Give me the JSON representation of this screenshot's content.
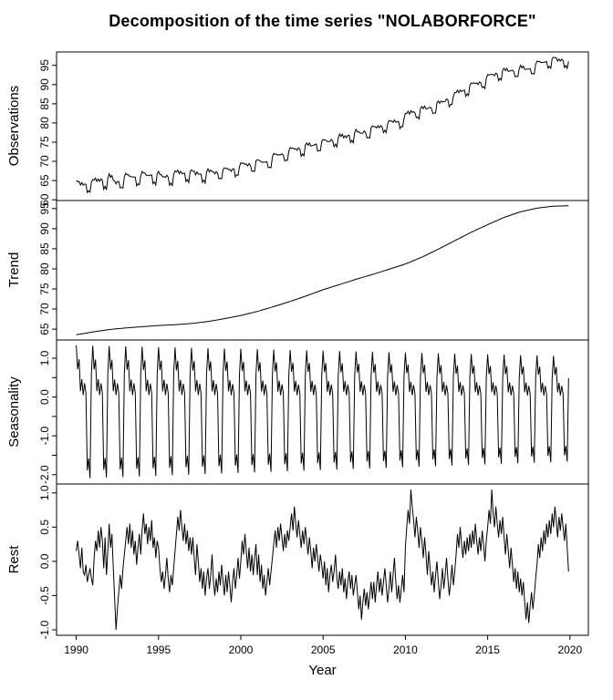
{
  "chart_data": {
    "type": "line",
    "title": "Decomposition of the time series \"NOLABORFORCE\"",
    "xlabel": "Year",
    "line_color": "#000000",
    "background_color": "#ffffff",
    "x_start": 1990,
    "frequency": 12,
    "n_points": 360,
    "xlim": [
      1988.8,
      2021.12
    ],
    "xticks": [
      1990,
      1995,
      2000,
      2005,
      2010,
      2015,
      2020
    ],
    "grid": false,
    "legend": "none",
    "panels": [
      {
        "name": "Observations",
        "source": "sum",
        "ylim": [
          59.8,
          98.5
        ],
        "yticks": [
          60,
          65,
          70,
          75,
          80,
          85,
          90,
          95
        ],
        "ytick_labels": [
          "60",
          "65",
          "70",
          "75",
          "80",
          "85",
          "90",
          "95"
        ]
      },
      {
        "name": "Trend",
        "source": "trend",
        "ylim": [
          62.3,
          97.0
        ],
        "yticks": [
          65,
          70,
          75,
          80,
          85,
          90,
          95
        ],
        "ytick_labels": [
          "65",
          "70",
          "75",
          "80",
          "85",
          "90",
          "95"
        ]
      },
      {
        "name": "Seasonality",
        "source": "seasonality",
        "ylim": [
          -2.24,
          1.47
        ],
        "yticks": [
          -2.0,
          -1.5,
          -1.0,
          -0.5,
          0.0,
          0.5,
          1.0
        ],
        "ytick_labels": [
          "-2.0",
          "",
          "-1.0",
          "",
          "0.0",
          "",
          "1.0"
        ]
      },
      {
        "name": "Rest",
        "source": "rest",
        "ylim": [
          -1.08,
          1.13
        ],
        "yticks": [
          -1.0,
          -0.5,
          0.0,
          0.5,
          1.0
        ],
        "ytick_labels": [
          "-1.0",
          "-0.5",
          "0.0",
          "0.5",
          "1.0"
        ]
      }
    ],
    "trend": {
      "anchor_years": [
        1990,
        1991,
        1992,
        1993,
        1994,
        1995,
        1996,
        1997,
        1998,
        1999,
        2000,
        2001,
        2002,
        2003,
        2004,
        2005,
        2006,
        2007,
        2008,
        2009,
        2010,
        2011,
        2012,
        2013,
        2014,
        2015,
        2016,
        2017,
        2018,
        2019,
        2020
      ],
      "anchor_values": [
        63.6,
        64.3,
        64.9,
        65.3,
        65.6,
        65.9,
        66.1,
        66.4,
        66.9,
        67.6,
        68.4,
        69.4,
        70.6,
        71.9,
        73.3,
        74.8,
        76.1,
        77.4,
        78.6,
        79.9,
        81.2,
        82.9,
        84.9,
        87.0,
        89.1,
        91.0,
        92.8,
        94.2,
        95.1,
        95.6,
        95.7
      ]
    },
    "seasonality": {
      "monthly_pattern": [
        1.3,
        0.7,
        0.95,
        0.15,
        0.45,
        0.05,
        0.35,
        0.1,
        -1.85,
        -1.55,
        -2.05,
        0.6
      ],
      "amplitude_start": 1.025,
      "amplitude_end": 0.81
    },
    "rest": {
      "values": [
        0.15,
        0.3,
        0.1,
        -0.1,
        0.2,
        -0.15,
        -0.2,
        -0.05,
        -0.3,
        -0.2,
        -0.1,
        -0.25,
        -0.35,
        0.05,
        0.3,
        0.15,
        0.45,
        0.2,
        0.5,
        0.3,
        -0.1,
        0.35,
        -0.2,
        0.15,
        0.55,
        0.2,
        0.4,
        -0.1,
        -0.55,
        -1.0,
        -0.7,
        -0.45,
        -0.2,
        -0.4,
        -0.1,
        0.1,
        0.3,
        0.5,
        0.25,
        0.55,
        0.2,
        0.45,
        0.1,
        0.3,
        -0.05,
        0.2,
        0.4,
        0.1,
        0.45,
        0.7,
        0.4,
        0.55,
        0.25,
        0.5,
        0.3,
        0.6,
        0.2,
        0.35,
        0.05,
        0.3,
        0.2,
        -0.1,
        -0.3,
        -0.15,
        -0.4,
        -0.2,
        0.05,
        -0.25,
        -0.45,
        -0.2,
        -0.35,
        -0.1,
        0.15,
        0.4,
        0.65,
        0.45,
        0.75,
        0.5,
        0.3,
        0.55,
        0.25,
        0.45,
        0.15,
        0.35,
        0.1,
        0.35,
        0.05,
        -0.2,
        0.25,
        0.0,
        -0.3,
        -0.1,
        -0.4,
        -0.15,
        -0.5,
        -0.25,
        -0.1,
        -0.4,
        -0.2,
        0.1,
        -0.3,
        -0.5,
        -0.25,
        -0.45,
        -0.15,
        -0.35,
        -0.05,
        -0.3,
        -0.5,
        -0.2,
        -0.45,
        -0.15,
        -0.35,
        -0.6,
        -0.3,
        -0.1,
        -0.4,
        -0.2,
        0.05,
        -0.25,
        0.0,
        0.3,
        0.1,
        0.4,
        0.15,
        -0.1,
        0.2,
        -0.15,
        0.1,
        -0.2,
        0.05,
        0.25,
        -0.2,
        0.1,
        -0.3,
        -0.05,
        -0.4,
        -0.2,
        -0.5,
        -0.3,
        -0.1,
        -0.35,
        -0.15,
        0.05,
        0.25,
        0.45,
        0.2,
        0.5,
        0.3,
        0.55,
        0.35,
        0.15,
        0.4,
        0.2,
        0.45,
        0.3,
        0.5,
        0.7,
        0.45,
        0.8,
        0.55,
        0.35,
        0.6,
        0.4,
        0.2,
        0.45,
        0.25,
        0.5,
        0.3,
        0.1,
        0.35,
        0.15,
        -0.1,
        0.2,
        0.0,
        0.25,
        0.05,
        -0.15,
        0.1,
        -0.05,
        -0.25,
        0.0,
        -0.35,
        -0.1,
        -0.45,
        -0.2,
        -0.05,
        -0.3,
        -0.15,
        0.1,
        -0.25,
        -0.4,
        -0.15,
        -0.35,
        -0.1,
        -0.45,
        -0.25,
        -0.55,
        -0.3,
        -0.15,
        -0.4,
        -0.2,
        -0.5,
        -0.35,
        -0.2,
        -0.45,
        -0.7,
        -0.5,
        -0.85,
        -0.6,
        -0.4,
        -0.65,
        -0.45,
        -0.7,
        -0.5,
        -0.3,
        -0.55,
        -0.3,
        -0.6,
        -0.35,
        -0.15,
        -0.45,
        -0.25,
        -0.5,
        -0.3,
        -0.1,
        -0.35,
        -0.6,
        -0.4,
        -0.15,
        -0.45,
        -0.2,
        0.05,
        -0.3,
        -0.55,
        -0.35,
        -0.6,
        -0.4,
        -0.2,
        -0.45,
        0.2,
        0.5,
        0.75,
        0.55,
        1.05,
        0.8,
        0.6,
        0.35,
        0.65,
        0.45,
        0.2,
        0.5,
        0.3,
        0.05,
        0.35,
        0.1,
        -0.2,
        0.15,
        -0.1,
        -0.35,
        -0.15,
        -0.45,
        -0.2,
        0.0,
        -0.3,
        -0.55,
        -0.35,
        -0.1,
        -0.4,
        -0.2,
        0.05,
        -0.25,
        -0.5,
        -0.3,
        -0.05,
        -0.35,
        -0.15,
        0.1,
        0.4,
        0.2,
        0.5,
        0.25,
        0.05,
        0.3,
        0.1,
        0.35,
        0.15,
        0.4,
        0.2,
        0.45,
        0.25,
        0.55,
        0.3,
        0.1,
        0.35,
        0.15,
        0.45,
        0.25,
        0.0,
        0.3,
        0.5,
        0.75,
        0.55,
        1.05,
        0.7,
        0.5,
        0.8,
        0.55,
        0.35,
        0.6,
        0.4,
        0.65,
        0.35,
        0.1,
        0.4,
        0.15,
        -0.1,
        0.2,
        -0.05,
        -0.3,
        -0.1,
        -0.4,
        -0.15,
        -0.45,
        -0.25,
        -0.5,
        -0.3,
        -0.6,
        -0.85,
        -0.6,
        -0.9,
        -0.65,
        -0.45,
        -0.7,
        -0.5,
        -0.25,
        -0.05,
        0.25,
        0.05,
        0.35,
        0.15,
        0.45,
        0.25,
        0.55,
        0.35,
        0.6,
        0.4,
        0.7,
        0.5,
        0.8,
        0.6,
        0.35,
        0.65,
        0.45,
        0.7,
        0.5,
        0.3,
        0.55,
        0.2,
        -0.15
      ]
    },
    "observations_rule": "trend + seasonality + rest"
  }
}
